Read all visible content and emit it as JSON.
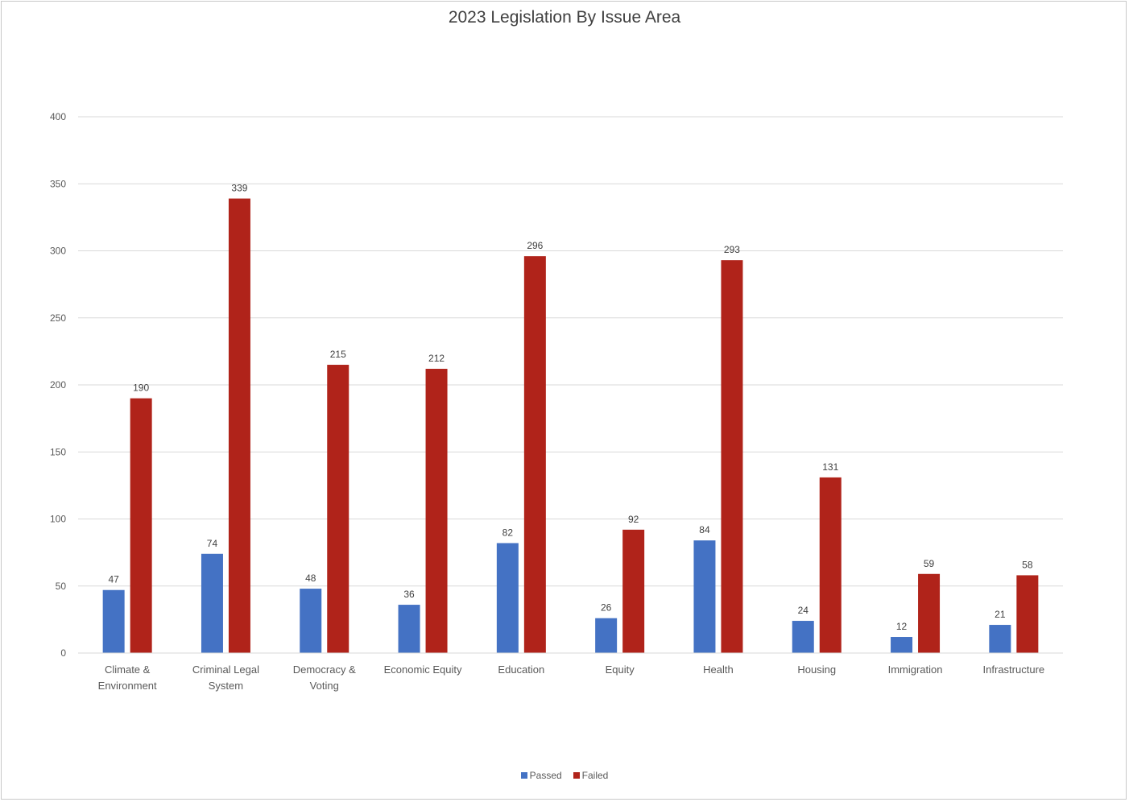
{
  "chart_data": {
    "type": "bar",
    "title": "2023 Legislation By Issue Area",
    "xlabel": "",
    "ylabel": "",
    "ylim": [
      0,
      400
    ],
    "yticks": [
      0,
      50,
      100,
      150,
      200,
      250,
      300,
      350,
      400
    ],
    "grid": true,
    "legend_position": "bottom",
    "categories": [
      [
        "Climate &",
        "Environment"
      ],
      [
        "Criminal Legal",
        "System"
      ],
      [
        "Democracy &",
        "Voting"
      ],
      [
        "Economic Equity"
      ],
      [
        "Education"
      ],
      [
        "Equity"
      ],
      [
        "Health"
      ],
      [
        "Housing"
      ],
      [
        "Immigration"
      ],
      [
        "Infrastructure"
      ]
    ],
    "series": [
      {
        "name": "Passed",
        "color": "#4472c4",
        "values": [
          47,
          74,
          48,
          36,
          82,
          26,
          84,
          24,
          12,
          21
        ]
      },
      {
        "name": "Failed",
        "color": "#b0231a",
        "values": [
          190,
          339,
          215,
          212,
          296,
          92,
          293,
          131,
          59,
          58
        ]
      }
    ]
  }
}
